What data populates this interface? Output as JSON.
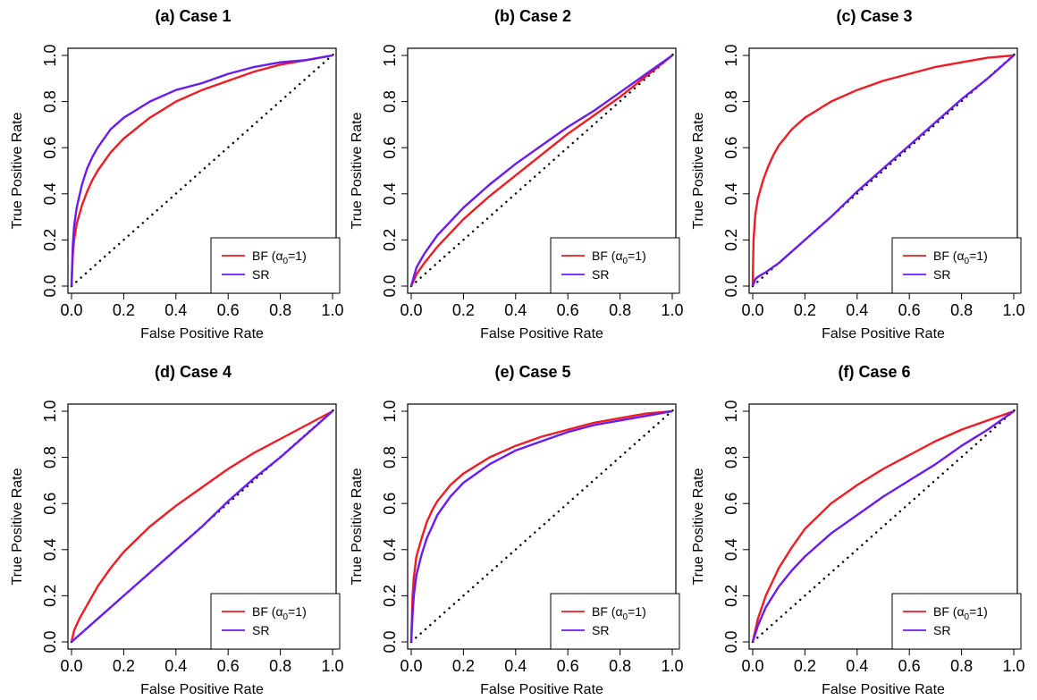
{
  "colors": {
    "bf": "#ee1c24",
    "sr": "#6a1cf0",
    "diagonal": "#000000",
    "axis": "#000000"
  },
  "legend": {
    "placement": "bottom-right",
    "entries": [
      {
        "key": "bf",
        "prefix": "BF (",
        "greek": "α",
        "sub": "0",
        "suffix": "=1)"
      },
      {
        "key": "sr",
        "label": "SR"
      }
    ]
  },
  "chart_data": [
    {
      "type": "line",
      "title": "(a) Case 1",
      "xlabel": "False Positive Rate",
      "ylabel": "True Positive Rate",
      "xlim": [
        0,
        1
      ],
      "ylim": [
        0,
        1
      ],
      "xticks": [
        "0.0",
        "0.2",
        "0.4",
        "0.6",
        "0.8",
        "1.0"
      ],
      "yticks": [
        "0.0",
        "0.2",
        "0.4",
        "0.6",
        "0.8",
        "1.0"
      ],
      "reference_line": "y=x (dotted)",
      "series": [
        {
          "name": "BF",
          "color": "#ee1c24",
          "x": [
            0,
            0.005,
            0.01,
            0.02,
            0.04,
            0.06,
            0.08,
            0.1,
            0.15,
            0.2,
            0.3,
            0.4,
            0.5,
            0.6,
            0.7,
            0.8,
            0.9,
            1.0
          ],
          "y": [
            0,
            0.14,
            0.2,
            0.27,
            0.35,
            0.41,
            0.46,
            0.5,
            0.58,
            0.64,
            0.73,
            0.8,
            0.85,
            0.89,
            0.93,
            0.96,
            0.98,
            1.0
          ]
        },
        {
          "name": "SR",
          "color": "#6a1cf0",
          "x": [
            0,
            0.005,
            0.01,
            0.02,
            0.04,
            0.06,
            0.08,
            0.1,
            0.15,
            0.2,
            0.3,
            0.4,
            0.5,
            0.6,
            0.7,
            0.8,
            0.9,
            1.0
          ],
          "y": [
            0,
            0.18,
            0.26,
            0.34,
            0.44,
            0.51,
            0.56,
            0.6,
            0.68,
            0.73,
            0.8,
            0.85,
            0.88,
            0.92,
            0.95,
            0.97,
            0.98,
            1.0
          ]
        }
      ]
    },
    {
      "type": "line",
      "title": "(b) Case 2",
      "xlabel": "False Positive Rate",
      "ylabel": "True Positive Rate",
      "xlim": [
        0,
        1
      ],
      "ylim": [
        0,
        1
      ],
      "xticks": [
        "0.0",
        "0.2",
        "0.4",
        "0.6",
        "0.8",
        "1.0"
      ],
      "yticks": [
        "0.0",
        "0.2",
        "0.4",
        "0.6",
        "0.8",
        "1.0"
      ],
      "reference_line": "y=x (dotted)",
      "series": [
        {
          "name": "BF",
          "color": "#ee1c24",
          "x": [
            0,
            0.02,
            0.05,
            0.1,
            0.15,
            0.2,
            0.3,
            0.4,
            0.5,
            0.6,
            0.7,
            0.8,
            0.9,
            1.0
          ],
          "y": [
            0,
            0.05,
            0.1,
            0.17,
            0.23,
            0.29,
            0.39,
            0.48,
            0.57,
            0.66,
            0.74,
            0.82,
            0.91,
            1.0
          ]
        },
        {
          "name": "SR",
          "color": "#6a1cf0",
          "x": [
            0,
            0.02,
            0.05,
            0.1,
            0.15,
            0.2,
            0.3,
            0.4,
            0.5,
            0.6,
            0.7,
            0.8,
            0.9,
            1.0
          ],
          "y": [
            0,
            0.08,
            0.14,
            0.22,
            0.28,
            0.34,
            0.44,
            0.53,
            0.61,
            0.69,
            0.76,
            0.84,
            0.92,
            1.0
          ]
        }
      ]
    },
    {
      "type": "line",
      "title": "(c) Case 3",
      "xlabel": "False Positive Rate",
      "ylabel": "True Positive Rate",
      "xlim": [
        0,
        1
      ],
      "ylim": [
        0,
        1
      ],
      "xticks": [
        "0.0",
        "0.2",
        "0.4",
        "0.6",
        "0.8",
        "1.0"
      ],
      "yticks": [
        "0.0",
        "0.2",
        "0.4",
        "0.6",
        "0.8",
        "1.0"
      ],
      "reference_line": "y=x (dotted)",
      "series": [
        {
          "name": "BF",
          "color": "#ee1c24",
          "x": [
            0,
            0.003,
            0.01,
            0.02,
            0.04,
            0.06,
            0.08,
            0.1,
            0.15,
            0.2,
            0.3,
            0.4,
            0.5,
            0.6,
            0.7,
            0.8,
            0.9,
            1.0
          ],
          "y": [
            0,
            0.2,
            0.31,
            0.38,
            0.46,
            0.52,
            0.57,
            0.61,
            0.68,
            0.73,
            0.8,
            0.85,
            0.89,
            0.92,
            0.95,
            0.97,
            0.99,
            1.0
          ]
        },
        {
          "name": "SR",
          "color": "#6a1cf0",
          "x": [
            0,
            0.01,
            0.02,
            0.05,
            0.1,
            0.2,
            0.3,
            0.4,
            0.5,
            0.6,
            0.7,
            0.8,
            0.9,
            1.0
          ],
          "y": [
            0,
            0.03,
            0.04,
            0.06,
            0.1,
            0.2,
            0.3,
            0.41,
            0.51,
            0.61,
            0.71,
            0.81,
            0.9,
            1.0
          ]
        }
      ]
    },
    {
      "type": "line",
      "title": "(d) Case 4",
      "xlabel": "False Positive Rate",
      "ylabel": "True Positive Rate",
      "xlim": [
        0,
        1
      ],
      "ylim": [
        0,
        1
      ],
      "xticks": [
        "0.0",
        "0.2",
        "0.4",
        "0.6",
        "0.8",
        "1.0"
      ],
      "yticks": [
        "0.0",
        "0.2",
        "0.4",
        "0.6",
        "0.8",
        "1.0"
      ],
      "reference_line": "y=x (dotted)",
      "series": [
        {
          "name": "BF",
          "color": "#ee1c24",
          "x": [
            0,
            0.01,
            0.03,
            0.06,
            0.1,
            0.15,
            0.2,
            0.3,
            0.4,
            0.5,
            0.6,
            0.7,
            0.8,
            0.9,
            1.0
          ],
          "y": [
            0,
            0.05,
            0.1,
            0.16,
            0.24,
            0.32,
            0.39,
            0.5,
            0.59,
            0.67,
            0.75,
            0.82,
            0.88,
            0.94,
            1.0
          ]
        },
        {
          "name": "SR",
          "color": "#6a1cf0",
          "x": [
            0,
            0.05,
            0.1,
            0.2,
            0.3,
            0.4,
            0.5,
            0.6,
            0.7,
            0.8,
            0.9,
            1.0
          ],
          "y": [
            0,
            0.05,
            0.1,
            0.2,
            0.3,
            0.4,
            0.5,
            0.61,
            0.71,
            0.8,
            0.9,
            1.0
          ]
        }
      ]
    },
    {
      "type": "line",
      "title": "(e) Case 5",
      "xlabel": "False Positive Rate",
      "ylabel": "True Positive Rate",
      "xlim": [
        0,
        1
      ],
      "ylim": [
        0,
        1
      ],
      "xticks": [
        "0.0",
        "0.2",
        "0.4",
        "0.6",
        "0.8",
        "1.0"
      ],
      "yticks": [
        "0.0",
        "0.2",
        "0.4",
        "0.6",
        "0.8",
        "1.0"
      ],
      "reference_line": "y=x (dotted)",
      "series": [
        {
          "name": "BF",
          "color": "#ee1c24",
          "x": [
            0,
            0.005,
            0.01,
            0.02,
            0.04,
            0.06,
            0.08,
            0.1,
            0.15,
            0.2,
            0.3,
            0.4,
            0.5,
            0.6,
            0.7,
            0.8,
            0.9,
            1.0
          ],
          "y": [
            0,
            0.2,
            0.28,
            0.37,
            0.45,
            0.52,
            0.57,
            0.61,
            0.68,
            0.73,
            0.8,
            0.85,
            0.89,
            0.92,
            0.95,
            0.97,
            0.99,
            1.0
          ]
        },
        {
          "name": "SR",
          "color": "#6a1cf0",
          "x": [
            0,
            0.005,
            0.01,
            0.02,
            0.04,
            0.06,
            0.08,
            0.1,
            0.15,
            0.2,
            0.3,
            0.4,
            0.5,
            0.6,
            0.7,
            0.8,
            0.9,
            1.0
          ],
          "y": [
            0,
            0.12,
            0.2,
            0.29,
            0.38,
            0.45,
            0.5,
            0.55,
            0.63,
            0.69,
            0.77,
            0.83,
            0.87,
            0.91,
            0.94,
            0.96,
            0.98,
            1.0
          ]
        }
      ]
    },
    {
      "type": "line",
      "title": "(f) Case 6",
      "xlabel": "False Positive Rate",
      "ylabel": "True Positive Rate",
      "xlim": [
        0,
        1
      ],
      "ylim": [
        0,
        1
      ],
      "xticks": [
        "0.0",
        "0.2",
        "0.4",
        "0.6",
        "0.8",
        "1.0"
      ],
      "yticks": [
        "0.0",
        "0.2",
        "0.4",
        "0.6",
        "0.8",
        "1.0"
      ],
      "reference_line": "y=x (dotted)",
      "series": [
        {
          "name": "BF",
          "color": "#ee1c24",
          "x": [
            0,
            0.02,
            0.05,
            0.1,
            0.15,
            0.2,
            0.3,
            0.4,
            0.5,
            0.6,
            0.7,
            0.8,
            0.9,
            1.0
          ],
          "y": [
            0,
            0.1,
            0.2,
            0.32,
            0.41,
            0.49,
            0.6,
            0.68,
            0.75,
            0.81,
            0.87,
            0.92,
            0.96,
            1.0
          ]
        },
        {
          "name": "SR",
          "color": "#6a1cf0",
          "x": [
            0,
            0.02,
            0.05,
            0.1,
            0.15,
            0.2,
            0.3,
            0.4,
            0.5,
            0.6,
            0.7,
            0.8,
            0.9,
            1.0
          ],
          "y": [
            0,
            0.07,
            0.15,
            0.24,
            0.31,
            0.37,
            0.47,
            0.55,
            0.63,
            0.7,
            0.77,
            0.85,
            0.92,
            1.0
          ]
        }
      ]
    }
  ]
}
